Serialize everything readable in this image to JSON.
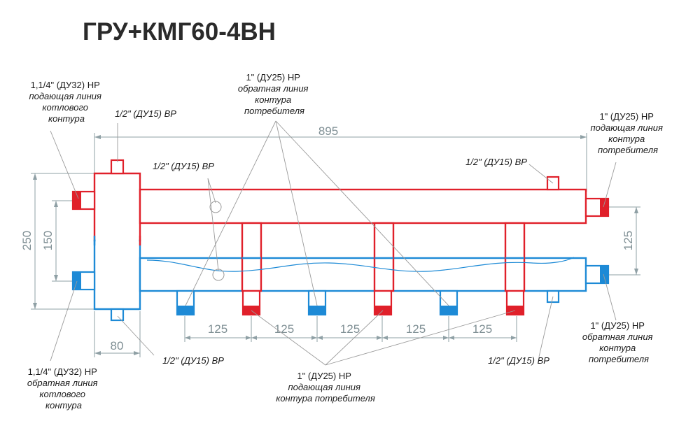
{
  "title": "ГРУ+КМГ60-4ВН",
  "colors": {
    "supply": "#e0202a",
    "return": "#1d8ad6",
    "dimension": "#7f8f94",
    "leader": "#9a9a9a"
  },
  "dimensions": {
    "total_length": "895",
    "height_total": "250",
    "height_boiler_spacing": "150",
    "height_consumer_spacing": "125",
    "outlet_spacing": [
      "125",
      "125",
      "125",
      "125",
      "125"
    ],
    "separator_width": "80"
  },
  "labels": {
    "boiler_supply": [
      "1,1/4\" (ДУ32) НР",
      "подающая линия",
      "котлового",
      "контура"
    ],
    "boiler_return": [
      "1,1/4\" (ДУ32) НР",
      "обратная линия",
      "котлового",
      "контура"
    ],
    "top_port": "1/2\" (ДУ15) ВР",
    "bottom_port": "1/2\" (ДУ15) ВР",
    "sensor_ports": "1/2\" (ДУ15) ВР",
    "consumer_return_outlets": [
      "1\" (ДУ25) НР",
      "обратная линия",
      "контура",
      "потребителя"
    ],
    "right_top_port": "1/2\" (ДУ15) ВР",
    "right_bottom_port": "1/2\" (ДУ15) ВР",
    "consumer_supply_end": [
      "1\" (ДУ25) НР",
      "подающая линия",
      "контура",
      "потребителя"
    ],
    "consumer_return_end": [
      "1\" (ДУ25) НР",
      "обратная линия",
      "контура",
      "потребителя"
    ],
    "consumer_supply_outlets": [
      "1\" (ДУ25) НР",
      "подающая линия",
      "контура потребителя"
    ]
  }
}
